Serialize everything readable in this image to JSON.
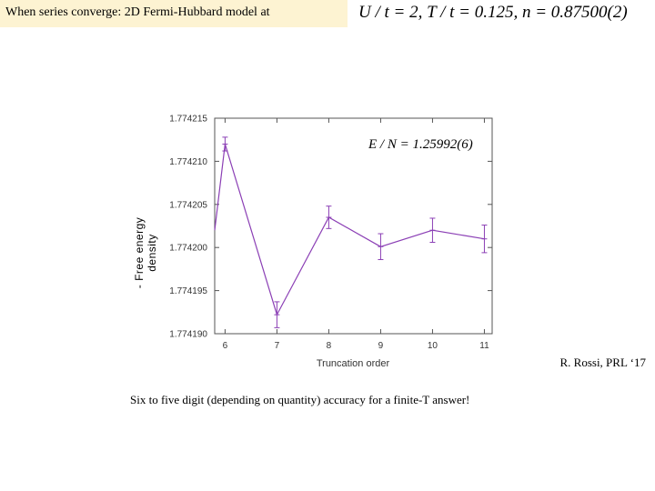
{
  "header": {
    "title": "When series converge: 2D Fermi-Hubbard model at",
    "params": "U / t = 2,   T / t = 0.125,   n = 0.87500(2)"
  },
  "reference": "R. Rossi, PRL ‘17",
  "footnote": "Six to five digit (depending on quantity) accuracy for a finite-T answer!",
  "chart_data": {
    "type": "line",
    "xlabel": "Truncation order",
    "ylabel_lines": [
      "- Free energy",
      "density"
    ],
    "annotation": "E / N = 1.25992(6)",
    "xlim": [
      5.8,
      11.15
    ],
    "ylim": [
      1.77419,
      1.774215
    ],
    "x_ticks": [
      6,
      7,
      8,
      9,
      10,
      11
    ],
    "y_ticks": [
      1.77419,
      1.774195,
      1.7742,
      1.774205,
      1.77421,
      1.774215
    ],
    "y_tick_labels": [
      "1.774190",
      "1.774195",
      "1.774200",
      "1.774205",
      "1.774210",
      "1.774215"
    ],
    "grid": false,
    "color": "#8b3fb5",
    "points": [
      {
        "x": 5.8,
        "y": 1.774202,
        "err": 0
      },
      {
        "x": 6,
        "y": 1.774212,
        "err": 8e-07
      },
      {
        "x": 7,
        "y": 1.7741922,
        "err": 1.5e-06
      },
      {
        "x": 8,
        "y": 1.7742035,
        "err": 1.3e-06
      },
      {
        "x": 9,
        "y": 1.7742001,
        "err": 1.5e-06
      },
      {
        "x": 10,
        "y": 1.774202,
        "err": 1.4e-06
      },
      {
        "x": 11,
        "y": 1.774201,
        "err": 1.6e-06
      }
    ]
  }
}
